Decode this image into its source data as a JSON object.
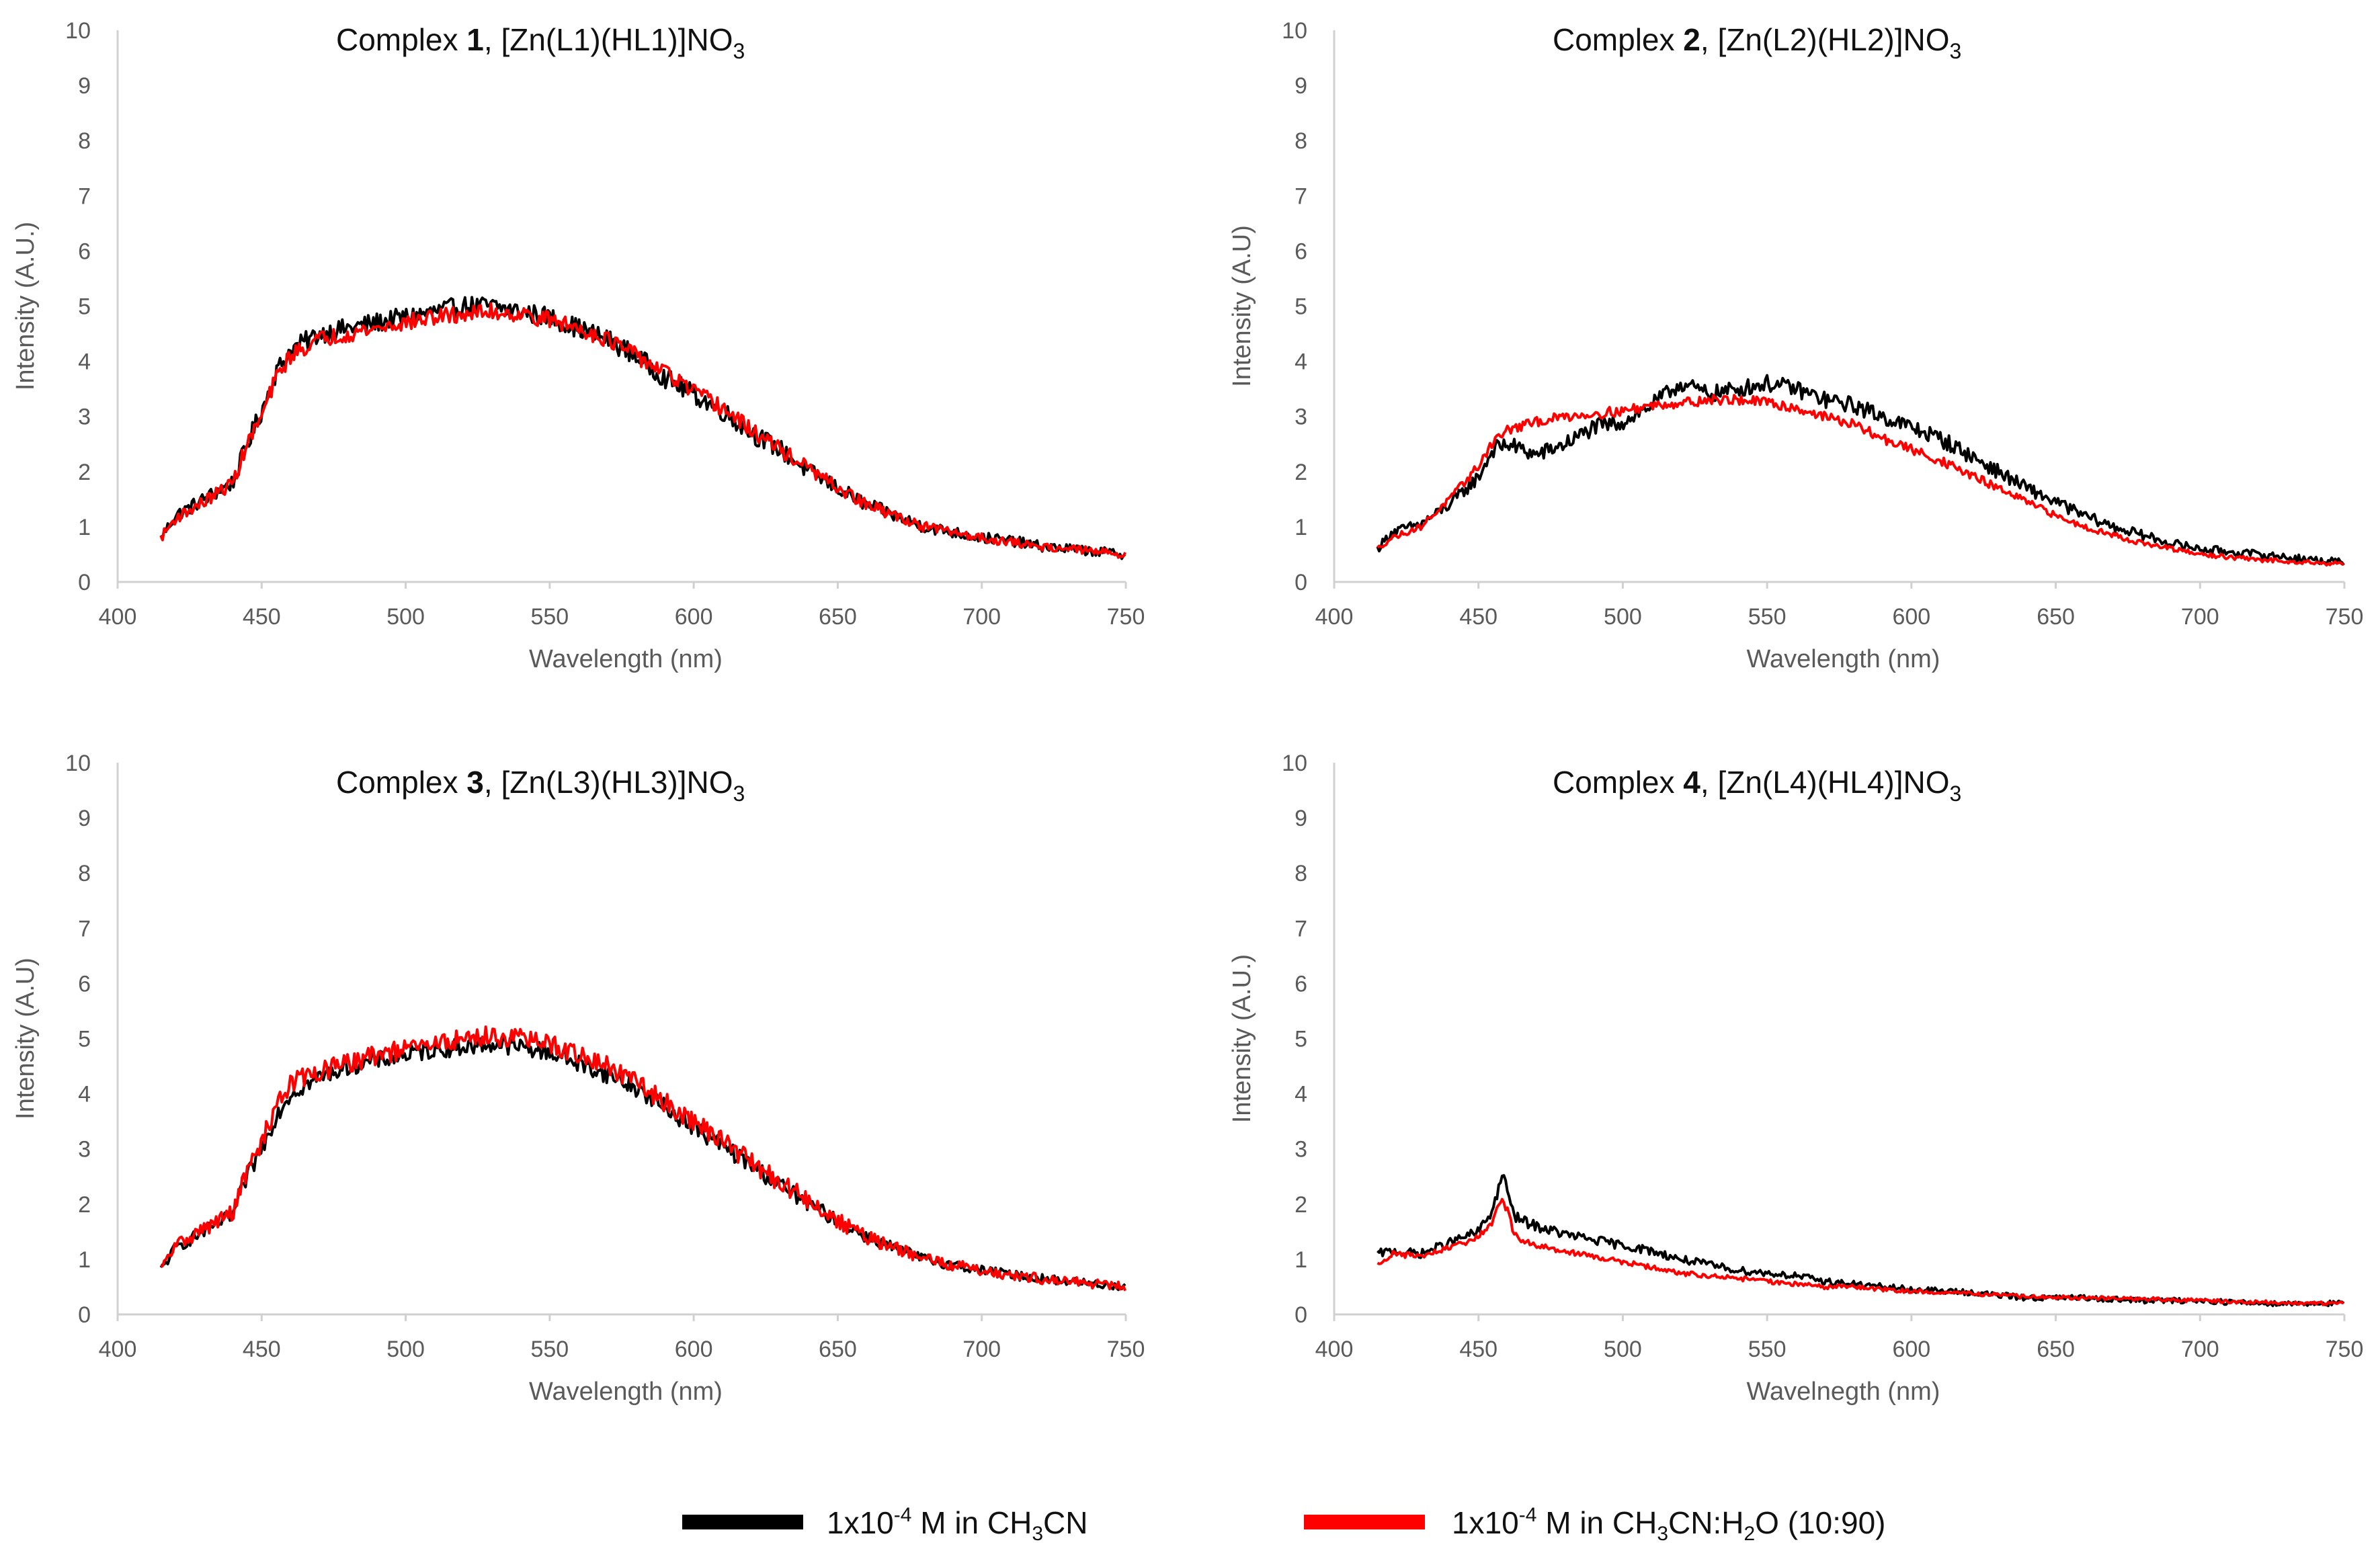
{
  "chart_data": [
    {
      "type": "line",
      "title": {
        "prefix": "Complex ",
        "number": "1",
        "formula": ", [Zn(L1)(HL1)]NO",
        "subscript": "3"
      },
      "xlabel": "Wavelength (nm)",
      "ylabel": "Intensity (A.U.)",
      "xlim": [
        400,
        750
      ],
      "ylim": [
        0,
        10
      ],
      "xticks": [
        400,
        450,
        500,
        550,
        600,
        650,
        700,
        750
      ],
      "yticks": [
        0,
        1,
        2,
        3,
        4,
        5,
        6,
        7,
        8,
        9,
        10
      ],
      "x": [
        415,
        420,
        430,
        440,
        445,
        450,
        455,
        460,
        470,
        480,
        490,
        500,
        510,
        520,
        530,
        540,
        550,
        560,
        570,
        580,
        590,
        600,
        610,
        620,
        630,
        640,
        650,
        660,
        670,
        680,
        690,
        700,
        710,
        720,
        730,
        740,
        750
      ],
      "series": [
        {
          "name": "1x10-4 M in CH3CN",
          "color": "#000000",
          "noise": 0.18,
          "values": [
            0.8,
            1.2,
            1.5,
            1.8,
            2.5,
            3.1,
            3.8,
            4.2,
            4.5,
            4.6,
            4.7,
            4.8,
            4.9,
            5.0,
            5.0,
            4.9,
            4.8,
            4.6,
            4.4,
            4.1,
            3.7,
            3.4,
            3.1,
            2.7,
            2.4,
            2.0,
            1.7,
            1.4,
            1.2,
            1.0,
            0.9,
            0.8,
            0.75,
            0.65,
            0.6,
            0.55,
            0.5
          ]
        },
        {
          "name": "1x10-4 M in CH3CN:H2O (10:90)",
          "color": "#ff0000",
          "noise": 0.15,
          "values": [
            0.8,
            1.15,
            1.45,
            1.8,
            2.5,
            3.0,
            3.7,
            4.1,
            4.4,
            4.5,
            4.6,
            4.7,
            4.8,
            4.85,
            4.9,
            4.85,
            4.75,
            4.6,
            4.4,
            4.1,
            3.8,
            3.45,
            3.15,
            2.75,
            2.4,
            2.05,
            1.7,
            1.4,
            1.2,
            1.0,
            0.9,
            0.8,
            0.72,
            0.65,
            0.6,
            0.55,
            0.5
          ]
        }
      ]
    },
    {
      "type": "line",
      "title": {
        "prefix": "Complex ",
        "number": "2",
        "formula": ", [Zn(L2)(HL2)]NO",
        "subscript": "3"
      },
      "xlabel": "Wavelength (nm)",
      "ylabel": "Intensity (A.U)",
      "xlim": [
        400,
        750
      ],
      "ylim": [
        0,
        10
      ],
      "xticks": [
        400,
        450,
        500,
        550,
        600,
        650,
        700,
        750
      ],
      "yticks": [
        0,
        1,
        2,
        3,
        4,
        5,
        6,
        7,
        8,
        9,
        10
      ],
      "x": [
        415,
        420,
        430,
        440,
        450,
        455,
        460,
        470,
        480,
        490,
        500,
        510,
        520,
        530,
        540,
        550,
        560,
        570,
        580,
        590,
        600,
        610,
        620,
        630,
        640,
        650,
        660,
        670,
        680,
        690,
        700,
        710,
        720,
        730,
        740,
        750
      ],
      "series": [
        {
          "name": "1x10-4 M in CH3CN",
          "color": "#000000",
          "noise": 0.15,
          "values": [
            0.6,
            0.9,
            1.05,
            1.4,
            1.9,
            2.4,
            2.5,
            2.3,
            2.5,
            2.8,
            2.9,
            3.2,
            3.6,
            3.4,
            3.5,
            3.6,
            3.5,
            3.3,
            3.2,
            3.0,
            2.8,
            2.6,
            2.3,
            2.0,
            1.7,
            1.45,
            1.2,
            1.0,
            0.85,
            0.7,
            0.6,
            0.55,
            0.5,
            0.45,
            0.4,
            0.35
          ]
        },
        {
          "name": "1x10-4 M in CH3CN:H2O (10:90)",
          "color": "#ff0000",
          "noise": 0.09,
          "values": [
            0.6,
            0.8,
            1.0,
            1.5,
            2.1,
            2.55,
            2.75,
            2.9,
            3.0,
            3.05,
            3.1,
            3.2,
            3.25,
            3.3,
            3.3,
            3.25,
            3.15,
            3.0,
            2.85,
            2.6,
            2.4,
            2.2,
            1.95,
            1.7,
            1.45,
            1.2,
            1.0,
            0.85,
            0.7,
            0.6,
            0.5,
            0.45,
            0.4,
            0.38,
            0.35,
            0.33
          ]
        }
      ]
    },
    {
      "type": "line",
      "title": {
        "prefix": "Complex ",
        "number": "3",
        "formula": ", [Zn(L3)(HL3)]NO",
        "subscript": "3"
      },
      "xlabel": "Wavelength (nm)",
      "ylabel": "Intensity (A.U)",
      "xlim": [
        400,
        750
      ],
      "ylim": [
        0,
        10
      ],
      "xticks": [
        400,
        450,
        500,
        550,
        600,
        650,
        700,
        750
      ],
      "yticks": [
        0,
        1,
        2,
        3,
        4,
        5,
        6,
        7,
        8,
        9,
        10
      ],
      "x": [
        415,
        420,
        430,
        440,
        445,
        450,
        455,
        460,
        470,
        480,
        490,
        500,
        510,
        520,
        530,
        540,
        550,
        560,
        570,
        580,
        590,
        600,
        610,
        620,
        630,
        640,
        650,
        660,
        670,
        680,
        690,
        700,
        710,
        720,
        730,
        740,
        750
      ],
      "series": [
        {
          "name": "1x10-4 M in CH3CN",
          "color": "#000000",
          "noise": 0.16,
          "values": [
            0.8,
            1.2,
            1.5,
            1.8,
            2.5,
            3.0,
            3.6,
            4.0,
            4.3,
            4.5,
            4.6,
            4.7,
            4.8,
            4.85,
            4.9,
            4.85,
            4.75,
            4.55,
            4.35,
            4.1,
            3.75,
            3.4,
            3.05,
            2.7,
            2.35,
            2.0,
            1.7,
            1.4,
            1.2,
            1.0,
            0.9,
            0.8,
            0.72,
            0.65,
            0.6,
            0.55,
            0.5
          ]
        },
        {
          "name": "1x10-4 M in CH3CN:H2O (10:90)",
          "color": "#ff0000",
          "noise": 0.18,
          "values": [
            0.8,
            1.25,
            1.55,
            1.85,
            2.6,
            3.1,
            3.8,
            4.2,
            4.4,
            4.55,
            4.7,
            4.8,
            4.9,
            5.0,
            5.05,
            5.0,
            4.9,
            4.7,
            4.5,
            4.2,
            3.85,
            3.5,
            3.15,
            2.75,
            2.4,
            2.05,
            1.7,
            1.4,
            1.2,
            1.0,
            0.9,
            0.8,
            0.72,
            0.65,
            0.6,
            0.55,
            0.5
          ]
        }
      ]
    },
    {
      "type": "line",
      "title": {
        "prefix": "Complex ",
        "number": "4",
        "formula": ", [Zn(L4)(HL4)]NO",
        "subscript": "3"
      },
      "xlabel": "Wavelnegth (nm)",
      "ylabel": "Intensity (A.U.)",
      "xlim": [
        400,
        750
      ],
      "ylim": [
        0,
        10
      ],
      "xticks": [
        400,
        450,
        500,
        550,
        600,
        650,
        700,
        750
      ],
      "yticks": [
        0,
        1,
        2,
        3,
        4,
        5,
        6,
        7,
        8,
        9,
        10
      ],
      "x": [
        415,
        420,
        430,
        440,
        450,
        455,
        458,
        460,
        462,
        465,
        470,
        480,
        490,
        500,
        510,
        520,
        530,
        540,
        550,
        560,
        570,
        580,
        590,
        600,
        620,
        640,
        660,
        680,
        700,
        720,
        740,
        750
      ],
      "series": [
        {
          "name": "1x10-4 M in CH3CN",
          "color": "#000000",
          "noise": 0.12,
          "values": [
            1.1,
            1.15,
            1.1,
            1.3,
            1.5,
            1.9,
            2.5,
            2.3,
            1.8,
            1.7,
            1.6,
            1.45,
            1.35,
            1.25,
            1.15,
            1.0,
            0.9,
            0.8,
            0.75,
            0.7,
            0.6,
            0.55,
            0.5,
            0.45,
            0.4,
            0.3,
            0.3,
            0.25,
            0.25,
            0.2,
            0.2,
            0.2
          ]
        },
        {
          "name": "1x10-4 M in CH3CN:H2O (10:90)",
          "color": "#ff0000",
          "noise": 0.08,
          "values": [
            0.9,
            1.1,
            1.05,
            1.2,
            1.4,
            1.7,
            2.1,
            1.9,
            1.5,
            1.35,
            1.25,
            1.15,
            1.05,
            0.95,
            0.85,
            0.75,
            0.7,
            0.65,
            0.6,
            0.55,
            0.5,
            0.5,
            0.45,
            0.42,
            0.38,
            0.32,
            0.3,
            0.28,
            0.25,
            0.22,
            0.2,
            0.2
          ]
        }
      ]
    }
  ],
  "legend": [
    {
      "pre": "1x10",
      "sup": "-4",
      "mid": " M in CH",
      "sub1": "3",
      "post": "CN",
      "sub2": "",
      "tail": "",
      "color": "#000000"
    },
    {
      "pre": "1x10",
      "sup": "-4",
      "mid": " M in CH",
      "sub1": "3",
      "post": "CN:H",
      "sub2": "2",
      "tail": "O (10:90)",
      "color": "#ff0000"
    }
  ]
}
